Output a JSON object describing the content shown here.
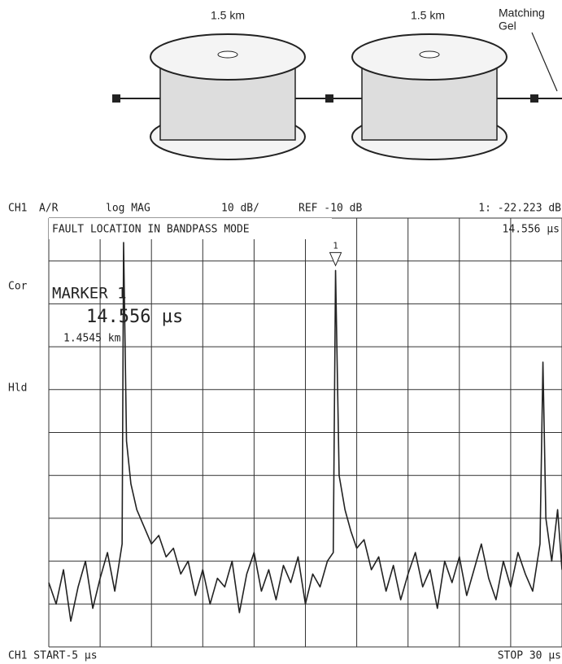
{
  "diagram": {
    "spool_1_label": "1.5 km",
    "spool_2_label": "1.5 km",
    "end_label": [
      "Matching",
      "Gel"
    ]
  },
  "header": {
    "channel": "CH1",
    "measurement": "A/R",
    "format": "log MAG",
    "scale": "10 dB/",
    "reference": "REF -10 dB",
    "marker_readout": "1: -22.223 dB"
  },
  "footer": {
    "start": "CH1 START-5 µs",
    "stop": "STOP 30 µs"
  },
  "side_labels": [
    "Cor",
    "Hld"
  ],
  "chart_data": {
    "type": "line",
    "title": "FAULT LOCATION IN BANDPASS MODE",
    "color": "#222222",
    "xlim": [
      -5,
      30
    ],
    "ylim": [
      -110,
      -10
    ],
    "x": [
      -5,
      -4.5,
      -4,
      -3.5,
      -3,
      -2.5,
      -2,
      -1.5,
      -1,
      -0.5,
      0,
      0.1,
      0.3,
      0.6,
      1,
      1.5,
      2,
      2.5,
      3,
      3.5,
      4,
      4.5,
      5,
      5.5,
      6,
      6.5,
      7,
      7.5,
      8,
      8.5,
      9,
      9.5,
      10,
      10.5,
      11,
      11.5,
      12,
      12.5,
      13,
      13.5,
      14,
      14.4,
      14.556,
      14.8,
      15.2,
      15.6,
      16,
      16.5,
      17,
      17.5,
      18,
      18.5,
      19,
      19.5,
      20,
      20.5,
      21,
      21.5,
      22,
      22.5,
      23,
      23.5,
      24,
      24.5,
      25,
      25.5,
      26,
      26.5,
      27,
      27.5,
      28,
      28.5,
      28.7,
      28.9,
      29.3,
      29.7,
      30
    ],
    "values": [
      -95,
      -100,
      -92,
      -104,
      -96,
      -90,
      -101,
      -94,
      -88,
      -97,
      -86,
      -15.7,
      -62,
      -72,
      -78,
      -82,
      -86,
      -84,
      -89,
      -87,
      -93,
      -90,
      -98,
      -92,
      -100,
      -94,
      -96,
      -90,
      -102,
      -93,
      -88,
      -97,
      -92,
      -99,
      -91,
      -95,
      -89,
      -100,
      -93,
      -96,
      -90,
      -88,
      -22.223,
      -70,
      -78,
      -83,
      -87,
      -85,
      -92,
      -89,
      -97,
      -91,
      -99,
      -93,
      -88,
      -96,
      -92,
      -101,
      -90,
      -95,
      -89,
      -98,
      -92,
      -86,
      -94,
      -99,
      -90,
      -96,
      -88,
      -93,
      -97,
      -86,
      -43.6,
      -80,
      -90,
      -78,
      -92
    ],
    "marker": {
      "name": "MARKER 1",
      "index_label": "1",
      "x": 14.556,
      "x_label": "14.556 µs",
      "distance": "1.4545 km",
      "top_readout": "14.556 µs"
    }
  }
}
